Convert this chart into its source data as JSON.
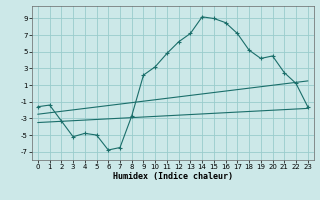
{
  "xlabel": "Humidex (Indice chaleur)",
  "background_color": "#cce8e8",
  "grid_color": "#99cccc",
  "line_color": "#1a6e6a",
  "x_ticks": [
    0,
    1,
    2,
    3,
    4,
    5,
    6,
    7,
    8,
    9,
    10,
    11,
    12,
    13,
    14,
    15,
    16,
    17,
    18,
    19,
    20,
    21,
    22,
    23
  ],
  "y_ticks": [
    -7,
    -5,
    -3,
    -1,
    1,
    3,
    5,
    7,
    9
  ],
  "xlim": [
    -0.5,
    23.5
  ],
  "ylim": [
    -8.0,
    10.5
  ],
  "main_line_x": [
    0,
    1,
    2,
    3,
    4,
    5,
    6,
    7,
    8,
    9,
    10,
    11,
    12,
    13,
    14,
    15,
    16,
    17,
    18,
    19,
    20,
    21,
    22,
    23
  ],
  "main_line_y": [
    -1.6,
    -1.4,
    -3.3,
    -5.2,
    -4.8,
    -5.0,
    -6.8,
    -6.5,
    -2.7,
    2.2,
    3.2,
    4.8,
    6.2,
    7.2,
    9.2,
    9.0,
    8.5,
    7.2,
    5.2,
    4.2,
    4.5,
    2.5,
    1.2,
    -1.6
  ],
  "line2_x": [
    0,
    23
  ],
  "line2_y": [
    -2.5,
    1.5
  ],
  "line3_x": [
    0,
    23
  ],
  "line3_y": [
    -3.5,
    -1.8
  ],
  "tick_fontsize": 5,
  "xlabel_fontsize": 6
}
